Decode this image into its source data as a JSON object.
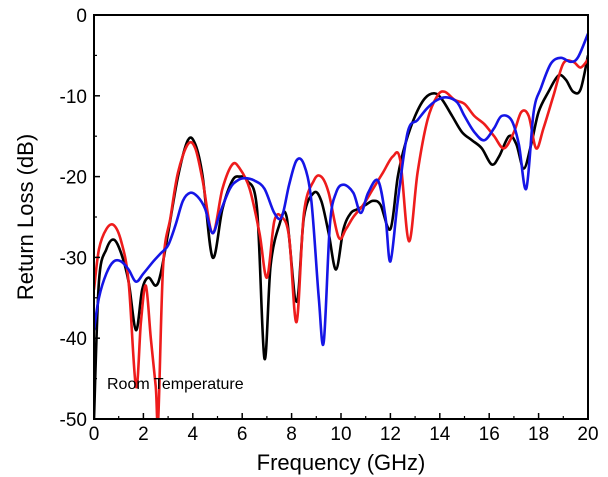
{
  "chart_data": {
    "type": "line",
    "title": "",
    "xlabel": "Frequency (GHz)",
    "ylabel": "Return Loss (dB)",
    "xlim": [
      0,
      20
    ],
    "ylim": [
      -50,
      0
    ],
    "xticks": [
      0,
      2,
      4,
      6,
      8,
      10,
      12,
      14,
      16,
      18,
      20
    ],
    "yticks": [
      0,
      -10,
      -20,
      -30,
      -40,
      -50
    ],
    "grid": false,
    "legend": "none",
    "annotations": [
      "Room Temperature"
    ],
    "series": [
      {
        "color": "#000000",
        "x": [
          0,
          0.2,
          0.5,
          0.8,
          1.1,
          1.4,
          1.7,
          1.95,
          2.2,
          2.5,
          2.7,
          3.0,
          3.4,
          3.8,
          4.1,
          4.4,
          4.8,
          5.2,
          5.6,
          5.9,
          6.2,
          6.6,
          6.9,
          7.15,
          7.5,
          7.8,
          8.2,
          8.5,
          8.9,
          9.2,
          9.5,
          9.8,
          10.1,
          10.4,
          10.7,
          11.0,
          11.3,
          11.6,
          12.0,
          12.3,
          12.6,
          13.0,
          13.4,
          13.8,
          14.1,
          14.5,
          14.9,
          15.3,
          15.7,
          16.1,
          16.4,
          16.8,
          17.1,
          17.4,
          17.7,
          18.0,
          18.4,
          18.8,
          19.1,
          19.4,
          19.7,
          20.0
        ],
        "y": [
          -50,
          -33,
          -29,
          -27.8,
          -29.5,
          -33,
          -39,
          -34,
          -32.5,
          -33.5,
          -32,
          -27,
          -20,
          -15.5,
          -16,
          -20,
          -30,
          -24,
          -20.5,
          -20,
          -20.5,
          -24,
          -42.5,
          -31,
          -26,
          -25,
          -35.5,
          -25,
          -22,
          -23,
          -27,
          -31.5,
          -26.5,
          -24.5,
          -24,
          -23.5,
          -23,
          -23.5,
          -26.5,
          -20,
          -16,
          -12.5,
          -10.3,
          -9.7,
          -10.5,
          -12.5,
          -14.5,
          -15.5,
          -16.5,
          -18.5,
          -17.5,
          -15,
          -16,
          -19,
          -16,
          -12,
          -9.5,
          -7.5,
          -8,
          -9.5,
          -9.2,
          -5
        ]
      },
      {
        "color": "#ee1c1c",
        "x": [
          0,
          0.2,
          0.5,
          0.8,
          1.1,
          1.4,
          1.7,
          1.9,
          2.1,
          2.3,
          2.5,
          2.6,
          2.8,
          3.1,
          3.4,
          3.8,
          4.1,
          4.4,
          4.8,
          5.2,
          5.6,
          5.9,
          6.3,
          6.7,
          7.0,
          7.3,
          7.6,
          7.9,
          8.2,
          8.5,
          8.9,
          9.2,
          9.5,
          9.9,
          10.2,
          10.5,
          10.9,
          11.3,
          11.7,
          12.1,
          12.4,
          12.75,
          13.1,
          13.5,
          13.9,
          14.2,
          14.6,
          15.0,
          15.4,
          15.8,
          16.2,
          16.6,
          17.0,
          17.3,
          17.6,
          17.9,
          18.2,
          18.6,
          19.0,
          19.4,
          19.7,
          20.0
        ],
        "y": [
          -34,
          -29,
          -26.5,
          -26,
          -28,
          -33,
          -46,
          -38,
          -33.5,
          -40,
          -46,
          -50,
          -31,
          -25,
          -19.5,
          -16,
          -16.5,
          -20.5,
          -27,
          -21.5,
          -18.5,
          -19,
          -21.5,
          -27,
          -32.5,
          -25.5,
          -25,
          -27.5,
          -38,
          -24.5,
          -20.5,
          -20,
          -22,
          -27.5,
          -26.5,
          -25,
          -23.5,
          -21.5,
          -19.5,
          -17.5,
          -18,
          -28,
          -19.5,
          -13,
          -10,
          -9.5,
          -10.5,
          -11,
          -12.5,
          -13.5,
          -15,
          -16.5,
          -14.5,
          -12,
          -12.5,
          -16.5,
          -14,
          -10,
          -6,
          -5.8,
          -6.5,
          -5.5
        ]
      },
      {
        "color": "#1515e6",
        "x": [
          0,
          0.2,
          0.5,
          0.8,
          1.1,
          1.4,
          1.7,
          2.0,
          2.4,
          2.7,
          3.0,
          3.3,
          3.6,
          3.9,
          4.2,
          4.5,
          4.8,
          5.1,
          5.5,
          5.8,
          6.1,
          6.5,
          6.9,
          7.3,
          7.6,
          7.9,
          8.2,
          8.5,
          8.8,
          9.1,
          9.3,
          9.55,
          9.8,
          10.1,
          10.5,
          10.8,
          11.1,
          11.5,
          11.8,
          12.0,
          12.3,
          12.7,
          13.1,
          13.5,
          13.9,
          14.3,
          14.7,
          15.0,
          15.4,
          15.8,
          16.2,
          16.5,
          16.9,
          17.2,
          17.5,
          17.8,
          18.1,
          18.5,
          18.9,
          19.3,
          19.6,
          20.0
        ],
        "y": [
          -39,
          -35,
          -32,
          -30.5,
          -30.5,
          -31.5,
          -33,
          -32,
          -30.5,
          -29.5,
          -28.5,
          -26,
          -23,
          -22,
          -22.5,
          -24,
          -27,
          -24.5,
          -21.5,
          -20.5,
          -20.2,
          -20.5,
          -21.5,
          -24.5,
          -25,
          -21,
          -18,
          -18.5,
          -23,
          -35,
          -40.5,
          -26,
          -22,
          -21,
          -22,
          -24.5,
          -22,
          -20.5,
          -25,
          -30.5,
          -23,
          -14.5,
          -13,
          -11.5,
          -10.5,
          -10.2,
          -10.8,
          -12.5,
          -14.5,
          -15.5,
          -14,
          -12.5,
          -13,
          -16,
          -21.5,
          -12,
          -9,
          -6,
          -5.3,
          -5.8,
          -5.2,
          -2.3
        ]
      }
    ]
  }
}
